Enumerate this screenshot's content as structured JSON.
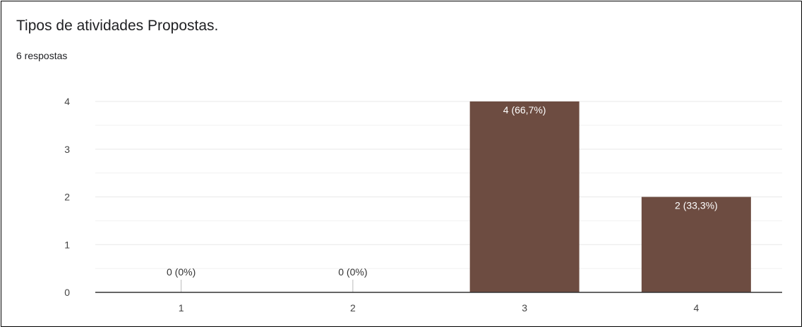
{
  "card": {
    "title": "Tipos de atividades Propostas.",
    "response_count": "6 respostas"
  },
  "colors": {
    "bar": "#6d4c41",
    "grid": "#e8e8e8",
    "axis": "#333333",
    "tick_text": "#444444",
    "bar_label_inside": "#ffffff",
    "bar_label_outside": "#333333"
  },
  "chart_data": {
    "type": "bar",
    "title": "Tipos de atividades Propostas.",
    "categories": [
      "1",
      "2",
      "3",
      "4"
    ],
    "values": [
      0,
      0,
      4,
      2
    ],
    "data_labels": [
      "0 (0%)",
      "0 (0%)",
      "4 (66,7%)",
      "2 (33,3%)"
    ],
    "xlabel": "",
    "ylabel": "",
    "ylim": [
      0,
      4
    ],
    "yticks": [
      0,
      1,
      2,
      3,
      4
    ],
    "grid": true,
    "legend": "none"
  }
}
